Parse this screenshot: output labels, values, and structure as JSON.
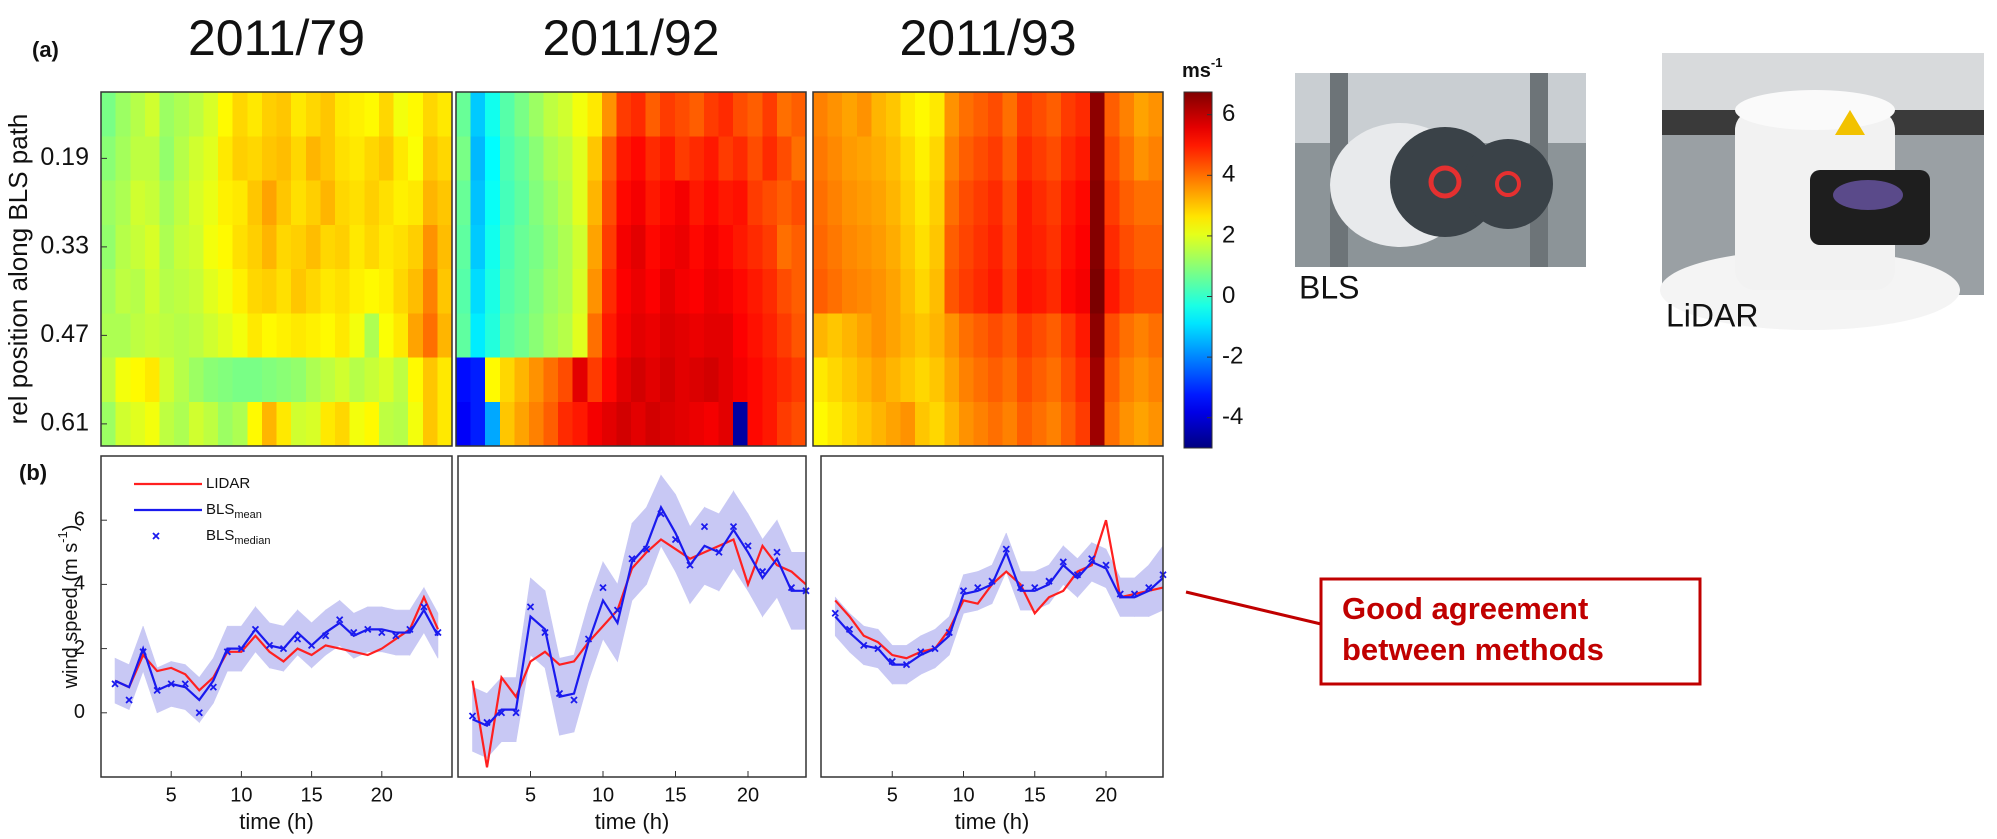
{
  "labels": {
    "a": "(a)",
    "b": "(b)"
  },
  "colorbar": {
    "label": "ms",
    "label_sup": "-1",
    "clim": [
      -5,
      6.75
    ],
    "ticks": [
      -4,
      -2,
      0,
      2,
      4,
      6
    ],
    "colormap": "jet"
  },
  "photos": [
    {
      "label": "BLS"
    },
    {
      "label": "LiDAR"
    }
  ],
  "callout": {
    "lines": [
      "Good agreement",
      "between methods"
    ],
    "color": "#c00000"
  },
  "chart_data": [
    {
      "type": "heatmap",
      "title": "2011/79",
      "ylabel": "rel position along BLS path",
      "reversed": true,
      "y": [
        0.12,
        0.19,
        0.26,
        0.33,
        0.4,
        0.47,
        0.54,
        0.61
      ],
      "ylim": [
        0.085,
        0.645
      ],
      "yticks": [
        0.19,
        0.33,
        0.47,
        0.61
      ],
      "z": [
        [
          0.8,
          1.2,
          1.5,
          1.8,
          1.2,
          1.4,
          1.6,
          1.9,
          2.4,
          2.8,
          2.6,
          2.9,
          3.0,
          2.6,
          2.8,
          3.0,
          2.6,
          2.5,
          2.4,
          2.8,
          2.2,
          2.4,
          2.8,
          2.6
        ],
        [
          1.0,
          1.3,
          1.6,
          1.6,
          1.1,
          1.5,
          1.8,
          2.0,
          2.6,
          2.9,
          2.8,
          3.0,
          3.1,
          2.8,
          3.2,
          3.0,
          2.7,
          2.6,
          2.8,
          3.0,
          2.6,
          2.3,
          3.0,
          2.8
        ],
        [
          1.2,
          1.4,
          1.8,
          1.7,
          1.3,
          1.6,
          1.9,
          2.1,
          2.5,
          2.6,
          3.0,
          3.4,
          3.0,
          2.7,
          2.9,
          3.2,
          2.8,
          2.7,
          2.9,
          2.7,
          2.5,
          2.6,
          3.2,
          3.0
        ],
        [
          1.1,
          1.5,
          1.7,
          1.9,
          1.4,
          1.7,
          1.8,
          2.2,
          2.4,
          2.7,
          2.9,
          3.2,
          2.8,
          2.9,
          3.1,
          2.8,
          2.9,
          2.6,
          2.8,
          2.6,
          2.7,
          2.9,
          3.6,
          3.1
        ],
        [
          1.3,
          1.6,
          1.5,
          1.8,
          1.5,
          1.6,
          1.7,
          2.0,
          2.2,
          2.5,
          2.8,
          2.9,
          2.7,
          3.0,
          2.8,
          2.6,
          2.7,
          2.5,
          2.4,
          2.5,
          2.8,
          3.1,
          3.8,
          3.0
        ],
        [
          1.4,
          1.4,
          1.6,
          1.7,
          1.6,
          1.5,
          1.6,
          1.8,
          2.0,
          2.2,
          2.6,
          2.4,
          2.5,
          2.6,
          2.5,
          2.4,
          2.6,
          2.2,
          1.4,
          2.3,
          2.6,
          3.4,
          4.0,
          3.2
        ],
        [
          1.6,
          2.2,
          2.4,
          2.6,
          1.8,
          1.5,
          1.2,
          1.0,
          0.9,
          0.8,
          0.8,
          0.9,
          1.0,
          1.1,
          1.4,
          1.6,
          1.8,
          1.5,
          1.7,
          1.9,
          1.6,
          2.4,
          3.0,
          2.6
        ],
        [
          1.2,
          1.8,
          2.0,
          2.2,
          1.6,
          1.4,
          1.8,
          1.6,
          1.2,
          1.4,
          2.4,
          3.2,
          2.6,
          1.8,
          1.9,
          2.6,
          2.8,
          2.2,
          2.4,
          1.6,
          1.5,
          2.2,
          3.0,
          2.6
        ]
      ]
    },
    {
      "type": "heatmap",
      "title": "2011/92",
      "reversed": true,
      "y": [
        0.12,
        0.19,
        0.26,
        0.33,
        0.4,
        0.47,
        0.54,
        0.61
      ],
      "ylim": [
        0.085,
        0.645
      ],
      "z": [
        [
          0.6,
          -1.2,
          -0.4,
          0.4,
          0.8,
          1.2,
          1.6,
          1.8,
          2.2,
          2.6,
          3.6,
          4.6,
          4.8,
          4.2,
          4.6,
          4.4,
          4.2,
          4.6,
          4.8,
          4.4,
          4.2,
          4.6,
          4.0,
          4.2
        ],
        [
          0.8,
          -1.4,
          -0.6,
          0.3,
          0.6,
          1.0,
          1.4,
          1.6,
          2.0,
          3.0,
          4.2,
          5.0,
          5.2,
          4.8,
          5.0,
          4.6,
          4.8,
          5.0,
          4.6,
          4.8,
          4.4,
          4.8,
          4.4,
          4.0
        ],
        [
          0.6,
          -1.3,
          -0.5,
          0.2,
          0.5,
          0.9,
          1.2,
          1.5,
          2.0,
          3.2,
          4.4,
          5.2,
          5.4,
          5.0,
          5.2,
          5.4,
          5.0,
          5.2,
          5.0,
          5.1,
          4.6,
          4.4,
          4.2,
          4.4
        ],
        [
          0.5,
          -1.2,
          -0.4,
          0.3,
          0.6,
          0.8,
          1.1,
          1.4,
          1.8,
          3.4,
          4.6,
          5.4,
          5.6,
          5.2,
          5.4,
          5.5,
          5.2,
          5.4,
          5.2,
          5.0,
          4.8,
          4.6,
          4.0,
          4.2
        ],
        [
          0.4,
          -1.0,
          -0.3,
          0.4,
          0.6,
          0.9,
          1.2,
          1.4,
          1.9,
          3.6,
          4.8,
          5.3,
          5.5,
          5.3,
          5.6,
          5.4,
          5.3,
          5.5,
          5.4,
          5.2,
          5.0,
          4.8,
          4.4,
          4.2
        ],
        [
          0.5,
          -0.8,
          -0.2,
          0.5,
          0.7,
          1.0,
          1.3,
          1.5,
          2.0,
          4.0,
          5.0,
          5.4,
          5.6,
          5.5,
          5.7,
          5.6,
          5.5,
          5.6,
          5.6,
          5.3,
          5.1,
          4.9,
          4.6,
          4.3
        ],
        [
          -3.4,
          -3.2,
          2.4,
          2.8,
          3.2,
          3.6,
          4.0,
          4.4,
          5.6,
          4.6,
          5.2,
          5.6,
          5.8,
          5.6,
          5.8,
          5.6,
          5.7,
          5.8,
          5.6,
          5.4,
          5.2,
          5.0,
          4.8,
          4.6
        ],
        [
          -3.6,
          -3.2,
          -1.6,
          3.0,
          3.4,
          3.8,
          4.2,
          4.8,
          5.0,
          5.4,
          5.6,
          5.8,
          5.6,
          5.8,
          5.7,
          5.6,
          5.5,
          5.4,
          5.6,
          -4.6,
          5.2,
          5.0,
          4.6,
          4.4
        ]
      ]
    },
    {
      "type": "heatmap",
      "title": "2011/93",
      "reversed": true,
      "y": [
        0.12,
        0.19,
        0.26,
        0.33,
        0.4,
        0.47,
        0.54,
        0.61
      ],
      "ylim": [
        0.085,
        0.645
      ],
      "z": [
        [
          3.8,
          3.6,
          3.4,
          3.6,
          3.2,
          3.0,
          2.6,
          2.4,
          2.6,
          3.6,
          4.0,
          4.2,
          4.4,
          4.0,
          4.6,
          4.4,
          4.2,
          4.6,
          4.8,
          6.6,
          4.2,
          3.8,
          3.4,
          3.6
        ],
        [
          3.9,
          3.7,
          3.5,
          3.4,
          3.3,
          3.1,
          2.8,
          2.5,
          2.8,
          3.8,
          4.2,
          4.4,
          4.6,
          4.2,
          4.8,
          4.6,
          4.4,
          4.8,
          5.0,
          6.6,
          4.4,
          4.0,
          3.6,
          3.8
        ],
        [
          4.0,
          3.8,
          3.6,
          3.5,
          3.4,
          3.2,
          2.9,
          2.6,
          2.9,
          4.0,
          4.4,
          4.6,
          4.8,
          4.4,
          5.0,
          4.8,
          4.6,
          5.0,
          5.2,
          6.7,
          4.6,
          4.2,
          4.0,
          4.0
        ],
        [
          4.1,
          3.9,
          3.7,
          3.6,
          3.5,
          3.3,
          3.0,
          2.7,
          3.0,
          4.2,
          4.5,
          4.7,
          4.9,
          4.5,
          5.0,
          4.9,
          4.7,
          5.1,
          5.3,
          6.7,
          4.8,
          4.4,
          4.2,
          4.2
        ],
        [
          4.2,
          4.0,
          3.8,
          3.7,
          3.6,
          3.4,
          3.1,
          2.8,
          3.1,
          4.3,
          4.6,
          4.8,
          5.0,
          4.6,
          5.1,
          5.0,
          4.8,
          5.2,
          5.4,
          6.8,
          5.0,
          4.6,
          4.4,
          4.4
        ],
        [
          3.2,
          3.0,
          3.2,
          3.4,
          3.6,
          3.4,
          3.2,
          3.0,
          3.2,
          3.6,
          4.0,
          4.2,
          4.4,
          4.2,
          4.6,
          4.4,
          4.2,
          4.6,
          5.0,
          6.6,
          4.4,
          4.0,
          3.8,
          4.0
        ],
        [
          2.6,
          2.8,
          3.0,
          3.2,
          3.4,
          3.2,
          3.0,
          2.8,
          3.0,
          3.4,
          3.8,
          4.0,
          4.2,
          4.0,
          4.4,
          4.2,
          4.0,
          4.4,
          4.8,
          6.4,
          4.2,
          3.8,
          3.6,
          3.8
        ],
        [
          2.4,
          2.6,
          2.8,
          3.0,
          3.2,
          3.4,
          3.6,
          3.0,
          2.8,
          3.2,
          3.6,
          3.8,
          4.0,
          3.8,
          4.2,
          4.0,
          3.8,
          4.2,
          4.6,
          6.4,
          4.0,
          3.6,
          3.4,
          3.6
        ]
      ]
    },
    {
      "type": "line",
      "ylabel": {
        "text": "wind speed (m s",
        "sup": "-1",
        "end": ")"
      },
      "xlabel": "time (h)",
      "legend": "upper left",
      "x": [
        1,
        2,
        3,
        4,
        5,
        6,
        7,
        8,
        9,
        10,
        11,
        12,
        13,
        14,
        15,
        16,
        17,
        18,
        19,
        20,
        21,
        22,
        23,
        24
      ],
      "xlim": [
        0,
        25
      ],
      "xticks": [
        5,
        10,
        15,
        20
      ],
      "ylim": [
        -2,
        8
      ],
      "yticks": [
        0,
        2,
        4,
        6
      ],
      "band": {
        "color": "#c8c8f4",
        "lower": [
          0.3,
          0.1,
          1.3,
          0.0,
          0.2,
          0.1,
          -0.3,
          0.3,
          1.3,
          1.3,
          1.9,
          1.4,
          1.3,
          1.8,
          1.4,
          1.8,
          2.1,
          1.7,
          1.9,
          1.9,
          1.8,
          1.8,
          2.5,
          1.7
        ],
        "upper": [
          1.7,
          1.5,
          2.7,
          1.4,
          1.6,
          1.5,
          1.1,
          1.7,
          2.7,
          2.7,
          3.3,
          2.8,
          2.7,
          3.2,
          2.8,
          3.2,
          3.5,
          3.1,
          3.3,
          3.3,
          3.2,
          3.2,
          3.9,
          3.1
        ]
      },
      "series": [
        {
          "name": "LIDAR",
          "color": "#ff2020",
          "style": "line",
          "values": [
            1.0,
            0.8,
            1.8,
            1.3,
            1.4,
            1.2,
            0.7,
            1.1,
            1.9,
            1.9,
            2.4,
            1.9,
            1.6,
            2.0,
            1.8,
            2.1,
            2.0,
            1.9,
            1.8,
            2.0,
            2.3,
            2.6,
            3.6,
            2.6
          ]
        },
        {
          "name": "BLS",
          "subscript": "mean",
          "color": "#1a1aee",
          "style": "line",
          "values": [
            1.0,
            0.8,
            2.0,
            0.7,
            0.9,
            0.8,
            0.4,
            1.0,
            2.0,
            2.0,
            2.6,
            2.1,
            2.0,
            2.5,
            2.1,
            2.5,
            2.8,
            2.4,
            2.6,
            2.6,
            2.5,
            2.5,
            3.2,
            2.4
          ]
        },
        {
          "name": "BLS",
          "subscript": "median",
          "color": "#1a1aee",
          "style": "x",
          "values": [
            0.9,
            0.4,
            1.9,
            0.7,
            0.9,
            0.9,
            0.0,
            0.8,
            1.9,
            2.0,
            2.6,
            2.1,
            2.0,
            2.3,
            2.1,
            2.4,
            2.9,
            2.5,
            2.6,
            2.5,
            2.4,
            2.6,
            3.3,
            2.5
          ]
        }
      ]
    },
    {
      "type": "line",
      "xlabel": "time (h)",
      "x": [
        1,
        2,
        3,
        4,
        5,
        6,
        7,
        8,
        9,
        10,
        11,
        12,
        13,
        14,
        15,
        16,
        17,
        18,
        19,
        20,
        21,
        22,
        23,
        24
      ],
      "xlim": [
        0,
        24
      ],
      "xticks": [
        5,
        10,
        15,
        20
      ],
      "ylim": [
        -2,
        8
      ],
      "band": {
        "color": "#c8c8f4",
        "lower": [
          -1.2,
          -1.4,
          -0.9,
          -0.9,
          1.8,
          1.4,
          -0.7,
          -0.6,
          1.0,
          2.3,
          1.6,
          3.5,
          4.0,
          5.2,
          4.4,
          3.4,
          4.0,
          3.8,
          4.5,
          3.8,
          3.0,
          3.6,
          2.6,
          2.6
        ],
        "upper": [
          0.8,
          0.6,
          1.1,
          1.1,
          4.2,
          3.8,
          1.7,
          1.8,
          3.4,
          4.7,
          4.0,
          5.9,
          6.4,
          7.4,
          6.8,
          5.8,
          6.4,
          6.2,
          6.9,
          6.2,
          5.4,
          6.0,
          5.0,
          5.0
        ]
      },
      "series": [
        {
          "color": "#ff2020",
          "style": "line",
          "values": [
            1.0,
            -1.7,
            1.1,
            0.5,
            1.6,
            1.9,
            1.5,
            1.6,
            2.2,
            2.7,
            3.2,
            4.5,
            5.0,
            5.4,
            5.1,
            4.8,
            5.0,
            5.2,
            5.4,
            4.0,
            5.2,
            4.6,
            4.4,
            4.0
          ]
        },
        {
          "color": "#1a1aee",
          "style": "line",
          "values": [
            -0.2,
            -0.4,
            0.1,
            0.1,
            3.0,
            2.6,
            0.5,
            0.6,
            2.2,
            3.5,
            2.8,
            4.7,
            5.2,
            6.4,
            5.6,
            4.6,
            5.2,
            5.0,
            5.7,
            5.0,
            4.2,
            4.8,
            3.8,
            3.8
          ]
        },
        {
          "color": "#1a1aee",
          "style": "x",
          "values": [
            -0.1,
            -0.3,
            0.0,
            0.0,
            3.3,
            2.5,
            0.6,
            0.4,
            2.3,
            3.9,
            3.2,
            4.8,
            5.1,
            6.2,
            5.4,
            4.6,
            5.8,
            5.0,
            5.8,
            5.2,
            4.4,
            5.0,
            3.9,
            3.8
          ]
        }
      ]
    },
    {
      "type": "line",
      "xlabel": "time (h)",
      "x": [
        1,
        2,
        3,
        4,
        5,
        6,
        7,
        8,
        9,
        10,
        11,
        12,
        13,
        14,
        15,
        16,
        17,
        18,
        19,
        20,
        21,
        22,
        23,
        24
      ],
      "xlim": [
        0,
        24
      ],
      "xticks": [
        5,
        10,
        15,
        20
      ],
      "ylim": [
        -2,
        8
      ],
      "band": {
        "color": "#c8c8f4",
        "lower": [
          2.4,
          1.9,
          1.5,
          1.4,
          0.9,
          0.9,
          1.2,
          1.4,
          1.8,
          3.1,
          3.2,
          3.4,
          4.4,
          3.2,
          3.2,
          3.4,
          4.0,
          3.6,
          4.1,
          3.9,
          3.0,
          3.0,
          3.0,
          3.2
        ],
        "upper": [
          3.6,
          3.1,
          2.7,
          2.6,
          2.1,
          2.1,
          2.4,
          2.6,
          3.0,
          4.3,
          4.4,
          4.6,
          5.6,
          4.4,
          4.4,
          4.6,
          5.2,
          4.8,
          5.3,
          5.1,
          4.2,
          4.2,
          4.6,
          5.2
        ]
      },
      "series": [
        {
          "color": "#ff2020",
          "style": "line",
          "values": [
            3.5,
            3.0,
            2.4,
            2.2,
            1.8,
            1.7,
            1.9,
            2.0,
            2.6,
            3.5,
            3.4,
            4.0,
            4.4,
            4.0,
            3.1,
            3.6,
            3.8,
            4.4,
            4.6,
            6.0,
            3.6,
            3.7,
            3.8,
            3.9
          ]
        },
        {
          "color": "#1a1aee",
          "style": "line",
          "values": [
            3.0,
            2.5,
            2.1,
            2.0,
            1.5,
            1.5,
            1.8,
            2.0,
            2.4,
            3.7,
            3.8,
            4.0,
            5.0,
            3.8,
            3.8,
            4.0,
            4.6,
            4.2,
            4.7,
            4.5,
            3.6,
            3.6,
            3.8,
            4.2
          ]
        },
        {
          "color": "#1a1aee",
          "style": "x",
          "values": [
            3.1,
            2.6,
            2.1,
            2.0,
            1.6,
            1.5,
            1.9,
            2.0,
            2.5,
            3.8,
            3.9,
            4.1,
            5.1,
            3.9,
            3.9,
            4.1,
            4.7,
            4.3,
            4.8,
            4.6,
            3.7,
            3.7,
            3.9,
            4.3
          ]
        }
      ]
    }
  ]
}
